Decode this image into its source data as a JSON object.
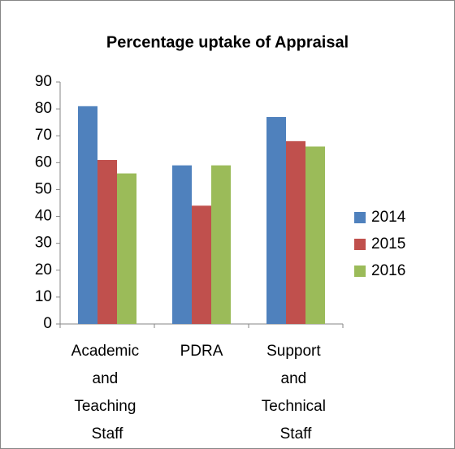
{
  "chart_data": {
    "type": "bar",
    "title": "Percentage uptake of Appraisal",
    "categories": [
      "Academic and Teaching Staff",
      "PDRA",
      "Support and Technical Staff"
    ],
    "series": [
      {
        "name": "2014",
        "color": "#4f81bd",
        "values": [
          81,
          59,
          77
        ]
      },
      {
        "name": "2015",
        "color": "#c0504d",
        "values": [
          61,
          44,
          68
        ]
      },
      {
        "name": "2016",
        "color": "#9bbb59",
        "values": [
          56,
          59,
          66
        ]
      }
    ],
    "ylim": [
      0,
      90
    ],
    "yticks": [
      0,
      10,
      20,
      30,
      40,
      50,
      60,
      70,
      80,
      90
    ],
    "grid": false,
    "legend": "right"
  }
}
